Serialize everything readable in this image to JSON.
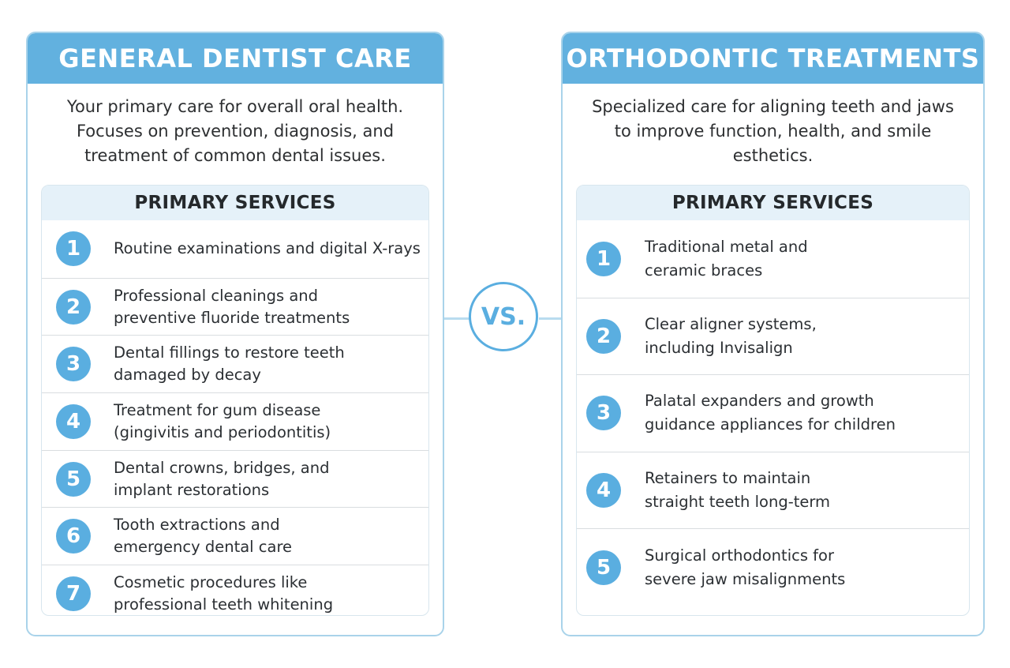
{
  "left": {
    "title": "GENERAL DENTIST CARE",
    "description": "Your primary care for overall oral health. Focuses on prevention, diagnosis, and treatment of common dental issues.",
    "services_heading": "PRIMARY SERVICES",
    "services": [
      {
        "num": "1",
        "text": "Routine examinations and digital X-rays"
      },
      {
        "num": "2",
        "text": "Professional cleanings and\npreventive fluoride treatments"
      },
      {
        "num": "3",
        "text": "Dental fillings to restore teeth\ndamaged by decay"
      },
      {
        "num": "4",
        "text": "Treatment for gum disease\n(gingivitis and periodontitis)"
      },
      {
        "num": "5",
        "text": "Dental crowns, bridges, and\nimplant restorations"
      },
      {
        "num": "6",
        "text": "Tooth extractions and\nemergency dental care"
      },
      {
        "num": "7",
        "text": "Cosmetic procedures like\nprofessional teeth whitening"
      }
    ]
  },
  "right": {
    "title": "ORTHODONTIC TREATMENTS",
    "description": "Specialized care for aligning teeth and jaws to improve function, health, and smile esthetics.",
    "services_heading": "PRIMARY SERVICES",
    "services": [
      {
        "num": "1",
        "text": "Traditional metal and\nceramic braces"
      },
      {
        "num": "2",
        "text": "Clear aligner systems,\nincluding Invisalign"
      },
      {
        "num": "3",
        "text": "Palatal expanders and growth\nguidance appliances for children"
      },
      {
        "num": "4",
        "text": "Retainers to maintain\nstraight teeth long-term"
      },
      {
        "num": "5",
        "text": "Surgical orthodontics for\nsevere jaw misalignments"
      }
    ]
  },
  "vs_label": "VS.",
  "colors": {
    "accent": "#62b1df",
    "badge": "#5aaee0",
    "border": "#a9d3ea",
    "subheader_bg": "#e5f1f9"
  }
}
